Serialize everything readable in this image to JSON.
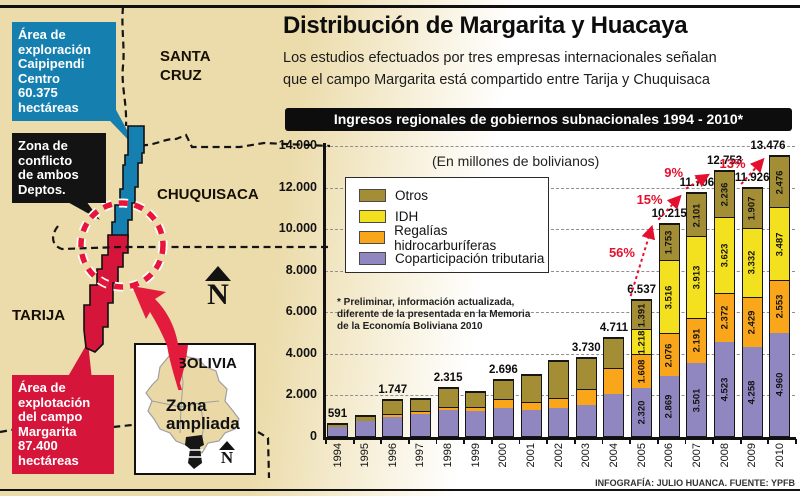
{
  "header": {
    "title": "Distribución de Margarita y Huacaya",
    "subtitle": "Los estudios efectuados por tres empresas internacionales señalan\nque el campo Margarita está compartido entre Tarija y Chuquisaca",
    "banner": "Ingresos regionales de gobiernos subnacionales 1994 - 2010*"
  },
  "map": {
    "regions": {
      "santa_cruz": "SANTA\nCRUZ",
      "chuquisaca": "CHUQUISACA",
      "tarija": "TARIJA"
    },
    "callouts": {
      "exploracion": "Área de\nexploración\nCaipipendi\nCentro\n60.375\nhectáreas",
      "conflicto": "Zona de\nconflicto\nde ambos\nDeptos.",
      "explotacion": "Área de\nexplotación\ndel campo\nMargarita\n87.400\nhectáreas"
    },
    "colors": {
      "exploration_blue": "#1580b0",
      "exploitation_red": "#d5163a",
      "conflict_circle_red": "#e8143a",
      "arrow_red": "#e31b3c",
      "map_beige": "#ecdcab"
    },
    "compass_letter": "N",
    "inset": {
      "title": "BOLIVIA",
      "label": "Zona\nampliada",
      "compass_letter": "N"
    }
  },
  "chart_data": {
    "type": "bar",
    "subtype": "stacked",
    "title": "Ingresos regionales de gobiernos subnacionales 1994 - 2010*",
    "units_note": "(En millones de bolivianos)",
    "categories": [
      "1994",
      "1995",
      "1996",
      "1997",
      "1998",
      "1999",
      "2000",
      "2001",
      "2002",
      "2003",
      "2004",
      "2005",
      "2006",
      "2007",
      "2008",
      "2009",
      "2010"
    ],
    "series": [
      {
        "name": "Coparticipación tributaria",
        "color": "#9187c0",
        "values": [
          430,
          730,
          900,
          1050,
          1250,
          1200,
          1350,
          1250,
          1360,
          1500,
          2030,
          2320,
          2869,
          3501,
          4523,
          4258,
          4960
        ]
      },
      {
        "name": "Regalías hidrocarburíferas",
        "color": "#f9a61a",
        "values": [
          0,
          0,
          150,
          150,
          150,
          200,
          420,
          380,
          460,
          750,
          1220,
          1608,
          2076,
          2191,
          2372,
          2429,
          2553
        ]
      },
      {
        "name": "IDH",
        "color": "#f3e11f",
        "values": [
          0,
          0,
          0,
          0,
          0,
          0,
          0,
          0,
          0,
          0,
          0,
          1218,
          3516,
          3913,
          3623,
          3332,
          3487
        ]
      },
      {
        "name": "Otros",
        "color": "#a38d35",
        "values": [
          161,
          220,
          697,
          600,
          915,
          700,
          926,
          1290,
          1770,
          1480,
          1461,
          1391,
          1753,
          2101,
          2236,
          1907,
          2476
        ]
      }
    ],
    "legend": [
      "Otros",
      "IDH",
      "Regalías hidrocarburíferas",
      "Coparticipación tributaria"
    ],
    "totals": [
      "591",
      null,
      "1.747",
      null,
      "2.315",
      null,
      "2.696",
      null,
      null,
      "3.730",
      "4.711",
      "6.537",
      "10.215",
      "11.706",
      "12.753",
      "11.926",
      "13.476"
    ],
    "segment_labels": [
      null,
      null,
      null,
      null,
      null,
      null,
      null,
      null,
      null,
      null,
      null,
      [
        "2.320",
        "1.608",
        "1.218",
        "1.391"
      ],
      [
        "2.869",
        "2.076",
        "3.516",
        "1.753"
      ],
      [
        "3.501",
        "2.191",
        "3.913",
        "2.101"
      ],
      [
        "4.523",
        "2.372",
        "3.623",
        "2.236"
      ],
      [
        "4.258",
        "2.429",
        "3.332",
        "1.907"
      ],
      [
        "4.960",
        "2.553",
        "3.487",
        "2.476"
      ]
    ],
    "growth": [
      {
        "label": "56%",
        "from": "2005",
        "to": "2006"
      },
      {
        "label": "15%",
        "from": "2006",
        "to": "2007"
      },
      {
        "label": "9%",
        "from": "2007",
        "to": "2008"
      },
      {
        "label": "13%",
        "from": "2009",
        "to": "2010"
      }
    ],
    "ylim": [
      0,
      14000
    ],
    "yticks": [
      "14.000",
      "12.000",
      "10.000",
      "8.000",
      "6.000",
      "4.000",
      "2.000",
      "0"
    ],
    "grid": true,
    "legend_position": "upper-left",
    "footnote": "* Preliminar, información actualizada,\ndiferente de la presentada en la Memoria\nde la Economía Boliviana 2010",
    "credit": "INFOGRAFÍA: JULIO HUANCA. FUENTE: YPFB"
  }
}
